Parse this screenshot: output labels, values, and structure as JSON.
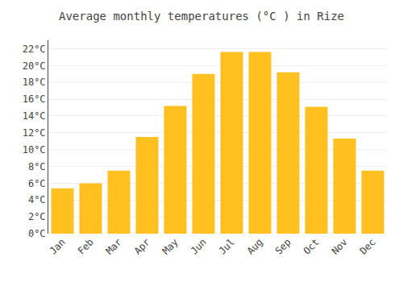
{
  "chart_data": {
    "type": "bar",
    "title": "Average monthly temperatures (°C ) in Rize",
    "categories": [
      "Jan",
      "Feb",
      "Mar",
      "Apr",
      "May",
      "Jun",
      "Jul",
      "Aug",
      "Sep",
      "Oct",
      "Nov",
      "Dec"
    ],
    "values": [
      5.4,
      6.0,
      7.5,
      11.5,
      15.2,
      19.0,
      21.6,
      21.6,
      19.2,
      15.1,
      11.3,
      7.5
    ],
    "color": "#FFC020",
    "ylim": [
      0,
      23
    ],
    "yticks": [
      {
        "value": 0,
        "label": "0°C"
      },
      {
        "value": 2,
        "label": "2°C"
      },
      {
        "value": 4,
        "label": "4°C"
      },
      {
        "value": 6,
        "label": "6°C"
      },
      {
        "value": 8,
        "label": "8°C"
      },
      {
        "value": 10,
        "label": "10°C"
      },
      {
        "value": 12,
        "label": "12°C"
      },
      {
        "value": 14,
        "label": "14°C"
      },
      {
        "value": 16,
        "label": "16°C"
      },
      {
        "value": 18,
        "label": "18°C"
      },
      {
        "value": 20,
        "label": "20°C"
      },
      {
        "value": 22,
        "label": "22°C"
      }
    ],
    "grid": true
  }
}
